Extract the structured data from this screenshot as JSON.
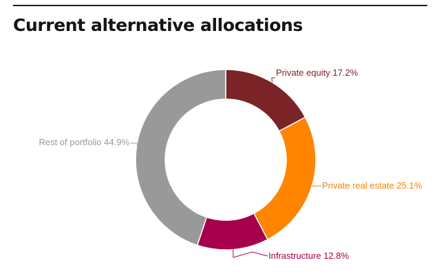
{
  "chart_data": {
    "type": "pie",
    "variant": "donut",
    "title": "Current alternative allocations",
    "categories": [
      "Private equity",
      "Private real estate",
      "Infrastructure",
      "Rest of portfolio"
    ],
    "values": [
      17.2,
      25.1,
      12.8,
      44.9
    ],
    "unit": "%",
    "colors": [
      "#7a2428",
      "#ff8400",
      "#a6004d",
      "#999999"
    ],
    "label_colors": [
      "#7a2428",
      "#f08300",
      "#a6004d",
      "#9b9b9b"
    ],
    "labels": [
      "Private equity 17.2%",
      "Private real estate 25.1%",
      "Infrastructure 12.8%",
      "Rest of portfolio 44.9%"
    ],
    "legend": "none",
    "grid": false
  }
}
